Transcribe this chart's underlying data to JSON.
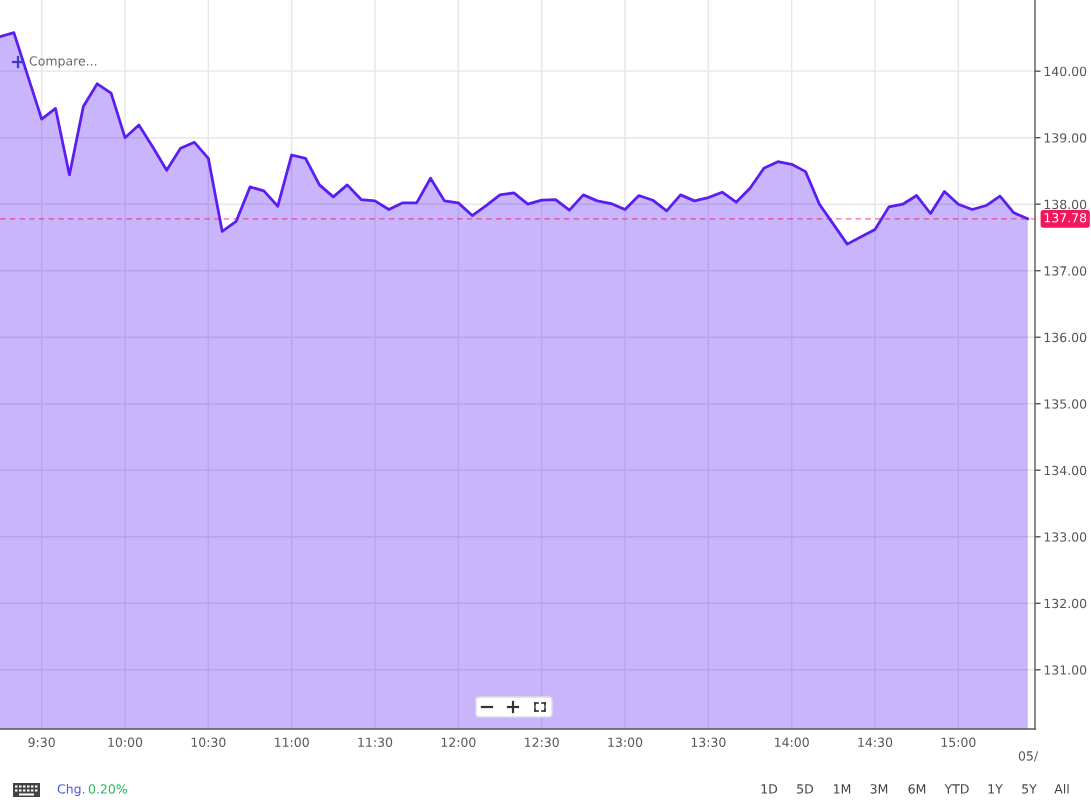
{
  "chart_data": {
    "type": "area",
    "x": [
      9.25,
      9.3333,
      9.5,
      9.5833,
      9.6667,
      9.75,
      9.8333,
      9.9167,
      10,
      10.0833,
      10.1667,
      10.25,
      10.3333,
      10.4167,
      10.5,
      10.5833,
      10.6667,
      10.75,
      10.8333,
      10.9167,
      11,
      11.0833,
      11.1667,
      11.25,
      11.3333,
      11.4167,
      11.5,
      11.5833,
      11.6667,
      11.75,
      11.8333,
      11.9167,
      12,
      12.0833,
      12.1667,
      12.25,
      12.3333,
      12.4167,
      12.5,
      12.5833,
      12.6667,
      12.75,
      12.8333,
      12.9167,
      13,
      13.0833,
      13.1667,
      13.25,
      13.3333,
      13.4167,
      13.5,
      13.5833,
      13.6667,
      13.75,
      13.8333,
      13.9167,
      14,
      14.0833,
      14.1667,
      14.25,
      14.3333,
      14.4167,
      14.5,
      14.5833,
      14.6667,
      14.75,
      14.8333,
      14.9167,
      15,
      15.0833,
      15.1667,
      15.25,
      15.3333,
      15.4167
    ],
    "series": [
      {
        "color": "#5a1ef2",
        "values": [
          140.52,
          140.58,
          139.28,
          139.44,
          138.44,
          139.47,
          139.81,
          139.67,
          139.0,
          139.19,
          138.86,
          138.51,
          138.84,
          138.93,
          138.69,
          137.59,
          137.74,
          138.26,
          138.2,
          137.97,
          138.74,
          138.69,
          138.29,
          138.11,
          138.29,
          138.07,
          138.05,
          137.92,
          138.02,
          138.02,
          138.39,
          138.05,
          138.02,
          137.83,
          137.98,
          138.14,
          138.17,
          138.0,
          138.06,
          138.07,
          137.91,
          138.14,
          138.05,
          138.01,
          137.92,
          138.13,
          138.06,
          137.9,
          138.14,
          138.05,
          138.1,
          138.18,
          138.03,
          138.24,
          138.54,
          138.64,
          138.6,
          138.49,
          138.0,
          137.7,
          137.4,
          137.51,
          137.62,
          137.96,
          138.0,
          138.13,
          137.86,
          138.19,
          138.0,
          137.92,
          137.98,
          138.12,
          137.87,
          137.78
        ]
      }
    ],
    "xlim": [
      9.25,
      15.46
    ],
    "ylim": [
      130.11,
      141.07
    ],
    "xticks": [
      {
        "value": 9.5,
        "label": "9:30"
      },
      {
        "value": 10,
        "label": "10:00"
      },
      {
        "value": 10.5,
        "label": "10:30"
      },
      {
        "value": 11,
        "label": "11:00"
      },
      {
        "value": 11.5,
        "label": "11:30"
      },
      {
        "value": 12,
        "label": "12:00"
      },
      {
        "value": 12.5,
        "label": "12:30"
      },
      {
        "value": 13,
        "label": "13:00"
      },
      {
        "value": 13.5,
        "label": "13:30"
      },
      {
        "value": 14,
        "label": "14:00"
      },
      {
        "value": 14.5,
        "label": "14:30"
      },
      {
        "value": 15,
        "label": "15:00"
      }
    ],
    "yticks": [
      {
        "value": 131,
        "label": "131.00"
      },
      {
        "value": 132,
        "label": "132.00"
      },
      {
        "value": 133,
        "label": "133.00"
      },
      {
        "value": 134,
        "label": "134.00"
      },
      {
        "value": 135,
        "label": "135.00"
      },
      {
        "value": 136,
        "label": "136.00"
      },
      {
        "value": 137,
        "label": "137.00"
      },
      {
        "value": 138,
        "label": "138.00"
      },
      {
        "value": 139,
        "label": "139.00"
      },
      {
        "value": 140,
        "label": "140.00"
      }
    ],
    "grid": true,
    "ref_lines": [
      {
        "axis": "y",
        "value": 137.78,
        "label": "137.78",
        "color": "#f0185a",
        "line_style": "dashed"
      }
    ],
    "annotations": [
      "Compare...",
      "Chg.",
      "0.20%",
      "1D",
      "5D",
      "1M",
      "3M",
      "6M",
      "YTD",
      "1Y",
      "5Y",
      "All",
      "05/"
    ]
  }
}
